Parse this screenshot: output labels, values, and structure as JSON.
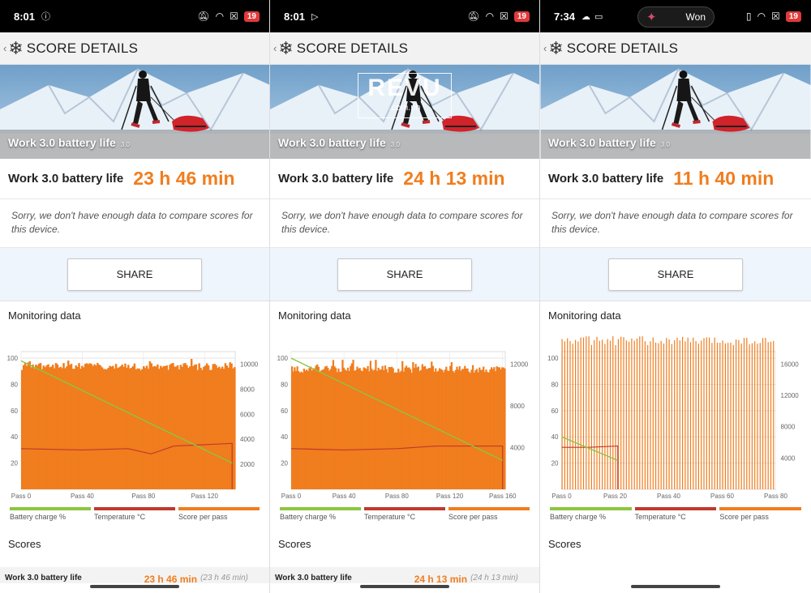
{
  "panels": [
    {
      "status": {
        "time": "8:01",
        "left_icons": [
          "info-icon"
        ],
        "right_icons": [
          "mute-icon",
          "wifi-icon",
          "x-icon"
        ],
        "battery": "19"
      },
      "appbar": {
        "back": "‹",
        "title": "SCORE DETAILS"
      },
      "hero": {
        "title": "Work 3.0 battery life",
        "version": "3.0"
      },
      "result": {
        "label": "Work 3.0 battery life",
        "value": "23 h 46 min"
      },
      "note": "Sorry, we don't have enough data to compare scores for this device.",
      "share": "SHARE",
      "monitoring": "Monitoring data",
      "legend": [
        "Battery charge %",
        "Temperature °C",
        "Score per pass"
      ],
      "scores_heading": "Scores",
      "score_row": {
        "label": "Work 3.0 battery life",
        "value": "23 h 46 min",
        "secondary": "(23 h 46 min)"
      }
    },
    {
      "status": {
        "time": "8:01",
        "left_icons": [
          "play-icon"
        ],
        "right_icons": [
          "mute-icon",
          "wifi-icon",
          "x-icon"
        ],
        "battery": "19"
      },
      "appbar": {
        "back": "‹",
        "title": "SCORE DETAILS"
      },
      "hero": {
        "title": "Work 3.0 battery life",
        "version": "3.0",
        "watermark": "REVU",
        "watermark_sub": ".com.ph"
      },
      "result": {
        "label": "Work 3.0 battery life",
        "value": "24 h 13 min"
      },
      "note": "Sorry, we don't have enough data to compare scores for this device.",
      "share": "SHARE",
      "monitoring": "Monitoring data",
      "legend": [
        "Battery charge %",
        "Temperature °C",
        "Score per pass"
      ],
      "scores_heading": "Scores",
      "score_row": {
        "label": "Work 3.0 battery life",
        "value": "24 h 13 min",
        "secondary": "(24 h 13 min)"
      }
    },
    {
      "status": {
        "time": "7:34",
        "left_icons": [
          "cloud-icon",
          "cast-icon"
        ],
        "pill": "Won",
        "right_icons": [
          "vibrate-icon",
          "wifi-icon",
          "x-icon"
        ],
        "battery": "19"
      },
      "appbar": {
        "back": "‹",
        "title": "SCORE DETAILS"
      },
      "hero": {
        "title": "Work 3.0 battery life",
        "version": "3.0"
      },
      "result": {
        "label": "Work 3.0 battery life",
        "value": "11 h 40 min"
      },
      "note": "Sorry, we don't have enough data to compare scores for this device.",
      "share": "SHARE",
      "monitoring": "Monitoring data",
      "legend": [
        "Battery charge %",
        "Temperature °C",
        "Score per pass"
      ],
      "scores_heading": "Scores"
    }
  ],
  "colors": {
    "orange": "#f07d1e",
    "green": "#8cc63f",
    "red": "#c0392b"
  },
  "chart_data": [
    {
      "type": "bar",
      "title": "",
      "x_ticks": [
        "Pass 0",
        "Pass 40",
        "Pass 80",
        "Pass 120"
      ],
      "x_range": [
        0,
        140
      ],
      "y_left_ticks": [
        20,
        40,
        60,
        80,
        100
      ],
      "y_right_ticks": [
        2000,
        4000,
        6000,
        8000,
        10000
      ],
      "series": [
        {
          "name": "Battery charge %",
          "type": "line",
          "x": [
            0,
            138
          ],
          "values": [
            98,
            20
          ]
        },
        {
          "name": "Temperature °C",
          "type": "line",
          "x": [
            0,
            40,
            70,
            85,
            100,
            138
          ],
          "values": [
            31,
            30,
            31,
            27,
            33,
            35
          ]
        },
        {
          "name": "Score per pass",
          "type": "bar",
          "passes": 139,
          "approx_value": 9800
        }
      ]
    },
    {
      "type": "bar",
      "title": "",
      "x_ticks": [
        "Pass 0",
        "Pass 40",
        "Pass 80",
        "Pass 120",
        "Pass 160"
      ],
      "x_range": [
        0,
        162
      ],
      "y_left_ticks": [
        20,
        40,
        60,
        80,
        100
      ],
      "y_right_ticks": [
        4000,
        8000,
        12000
      ],
      "series": [
        {
          "name": "Battery charge %",
          "type": "line",
          "x": [
            0,
            160
          ],
          "values": [
            100,
            22
          ]
        },
        {
          "name": "Temperature °C",
          "type": "line",
          "x": [
            0,
            40,
            80,
            110,
            160
          ],
          "values": [
            31,
            30,
            31,
            33,
            33
          ]
        },
        {
          "name": "Score per pass",
          "type": "bar",
          "passes": 161,
          "approx_value": 11500
        }
      ]
    },
    {
      "type": "bar",
      "title": "",
      "x_ticks": [
        "Pass 0",
        "Pass 20",
        "Pass 40",
        "Pass 60",
        "Pass 80"
      ],
      "x_range": [
        0,
        80
      ],
      "y_left_ticks": [
        20,
        40,
        60,
        80,
        100
      ],
      "y_right_ticks": [
        4000,
        8000,
        12000,
        16000
      ],
      "series": [
        {
          "name": "Battery charge %",
          "type": "line",
          "x": [
            0,
            21
          ],
          "values": [
            40,
            22
          ]
        },
        {
          "name": "Temperature °C",
          "type": "line",
          "x": [
            0,
            10,
            21
          ],
          "values": [
            32,
            32,
            33
          ]
        },
        {
          "name": "Score per pass",
          "type": "bar",
          "passes": 80,
          "approx_value": 19000
        }
      ]
    }
  ]
}
